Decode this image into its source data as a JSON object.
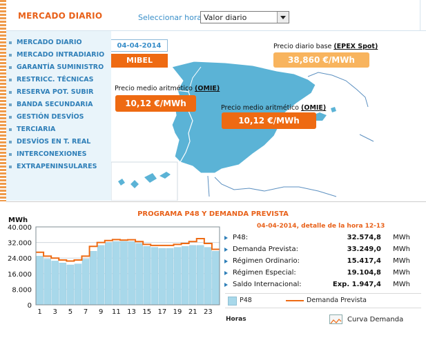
{
  "header": {
    "title": "MERCADO DIARIO",
    "select_label": "Seleccionar hora:",
    "select_value": "Valor diario"
  },
  "sidebar": {
    "items": [
      {
        "label": "MERCADO DIARIO"
      },
      {
        "label": "MERCADO INTRADIARIO"
      },
      {
        "label": "GARANTÍA SUMINISTRO"
      },
      {
        "label": "RESTRICC. TÉCNICAS"
      },
      {
        "label": "RESERVA POT. SUBIR"
      },
      {
        "label": "BANDA SECUNDARIA"
      },
      {
        "label": "GESTIÓN DESVÍOS"
      },
      {
        "label": "TERCIARIA"
      },
      {
        "label": "DESVÍOS EN T. REAL"
      },
      {
        "label": "INTERCONEXIONES"
      },
      {
        "label": "EXTRAPENINSULARES"
      }
    ]
  },
  "map": {
    "date": "04-04-2014",
    "market": "MIBEL",
    "price1": {
      "label": "Precio medio aritmético",
      "link": "(OMIE)",
      "value": "10,12 €/MWh"
    },
    "price2": {
      "label": "Precio medio aritmético",
      "link": "(OMIE)",
      "value": "10,12 €/MWh"
    },
    "price3": {
      "label": "Precio diario base",
      "link": "(EPEX Spot)",
      "value": "38,860 €/MWh"
    }
  },
  "program": {
    "title": "PROGRAMA P48 Y DEMANDA PREVISTA",
    "detail_title": "04-04-2014, detalle de la hora 12-13",
    "rows": [
      {
        "key": "P48:",
        "value": "32.574,8",
        "unit": "MWh"
      },
      {
        "key": "Demanda Prevista:",
        "value": "33.249,0",
        "unit": "MWh"
      },
      {
        "key": "Régimen Ordinario:",
        "value": "15.417,4",
        "unit": "MWh"
      },
      {
        "key": "Régimen Especial:",
        "value": "19.104,8",
        "unit": "MWh"
      },
      {
        "key": "Saldo Internacional:",
        "value": "Exp. 1.947,4",
        "unit": "MWh"
      }
    ],
    "legend_bar": "P48",
    "legend_line": "Demanda Prevista",
    "horas": "Horas",
    "curva": "Curva Demanda"
  },
  "chart_data": {
    "type": "bar",
    "ylabel": "MWh",
    "ylim": [
      0,
      40000
    ],
    "yticks": [
      "0",
      "8.000",
      "16.000",
      "24.000",
      "32.000",
      "40.000"
    ],
    "xticks": [
      "1",
      "3",
      "5",
      "7",
      "9",
      "11",
      "13",
      "15",
      "17",
      "19",
      "21",
      "23"
    ],
    "categories": [
      1,
      2,
      3,
      4,
      5,
      6,
      7,
      8,
      9,
      10,
      11,
      12,
      13,
      14,
      15,
      16,
      17,
      18,
      19,
      20,
      21,
      22,
      23,
      24
    ],
    "series": [
      {
        "name": "P48",
        "values": [
          25000,
          23500,
          22500,
          21500,
          20500,
          21000,
          23500,
          27500,
          30500,
          32000,
          32500,
          32600,
          32500,
          31500,
          30000,
          29500,
          29000,
          29000,
          29500,
          30000,
          30500,
          30500,
          29500,
          27500
        ]
      },
      {
        "name": "Demanda Prevista",
        "values": [
          27000,
          25000,
          24000,
          23000,
          22500,
          23000,
          25000,
          30000,
          32000,
          33000,
          33500,
          33250,
          33400,
          32500,
          31000,
          30500,
          30500,
          30500,
          31000,
          31500,
          32500,
          34000,
          31500,
          28500
        ]
      }
    ]
  }
}
